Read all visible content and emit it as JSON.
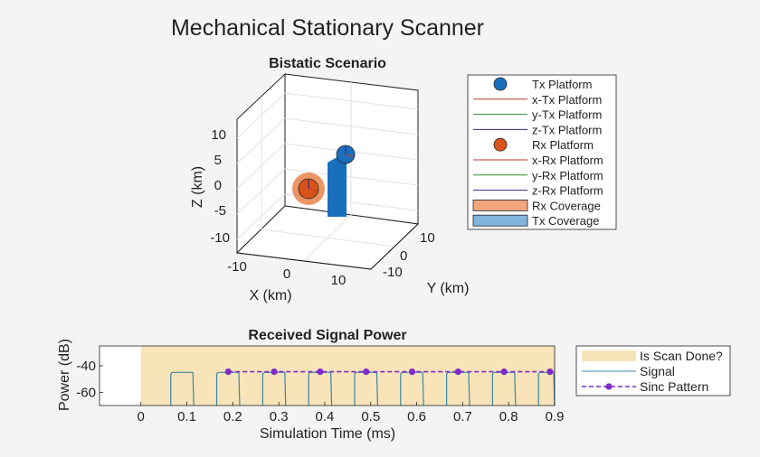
{
  "figure": {
    "title": "Mechanical Stationary Scanner"
  },
  "scenario": {
    "title": "Bistatic Scenario",
    "xlabel": "X (km)",
    "ylabel": "Y (km)",
    "zlabel": "Z (km)",
    "x_ticks": [
      "-10",
      "0",
      "10"
    ],
    "y_ticks": [
      "10",
      "0",
      "-10"
    ],
    "z_ticks": [
      "10",
      "5",
      "0",
      "-5",
      "-10"
    ],
    "legend": [
      {
        "label": "Tx Platform",
        "kind": "marker",
        "color": "#1a6fbd"
      },
      {
        "label": "x-Tx Platform",
        "kind": "line",
        "color": "#c0392b"
      },
      {
        "label": "y-Tx Platform",
        "kind": "line",
        "color": "#2e8b2e"
      },
      {
        "label": "z-Tx Platform",
        "kind": "line",
        "color": "#2a2a8c"
      },
      {
        "label": "Rx Platform",
        "kind": "marker",
        "color": "#d95319"
      },
      {
        "label": "x-Rx Platform",
        "kind": "line",
        "color": "#c0392b"
      },
      {
        "label": "y-Rx Platform",
        "kind": "line",
        "color": "#2e8b2e"
      },
      {
        "label": "z-Rx Platform",
        "kind": "line",
        "color": "#2a2a8c"
      },
      {
        "label": "Rx Coverage",
        "kind": "patch",
        "color": "#f0a67c"
      },
      {
        "label": "Tx Coverage",
        "kind": "patch",
        "color": "#82b4de"
      }
    ]
  },
  "chart_data": {
    "type": "line",
    "title": "Received Signal Power",
    "xlabel": "Simulation Time (ms)",
    "ylabel": "Power (dB)",
    "xlim": [
      -0.09,
      0.9
    ],
    "ylim": [
      -70,
      -25
    ],
    "x_ticks": [
      "0",
      "0.1",
      "0.2",
      "0.3",
      "0.4",
      "0.5",
      "0.6",
      "0.7",
      "0.8",
      "0.9"
    ],
    "y_ticks": [
      "-40",
      "-60"
    ],
    "scan_done_region": [
      0,
      0.9
    ],
    "signal_pulses": [
      [
        0.065,
        0.115
      ],
      [
        0.165,
        0.215
      ],
      [
        0.265,
        0.315
      ],
      [
        0.365,
        0.415
      ],
      [
        0.465,
        0.515
      ],
      [
        0.565,
        0.615
      ],
      [
        0.665,
        0.715
      ],
      [
        0.765,
        0.815
      ],
      [
        0.865,
        0.9
      ]
    ],
    "signal_level": -45,
    "signal_floor": -70,
    "sinc_x": [
      0.19,
      0.29,
      0.39,
      0.49,
      0.59,
      0.69,
      0.79,
      0.89
    ],
    "sinc_y": [
      -44.5,
      -44.5,
      -44.5,
      -44.5,
      -44.5,
      -44.5,
      -44.5,
      -44.5
    ],
    "legend": [
      {
        "label": "Is Scan Done?",
        "kind": "patch",
        "color": "#f8e4b8"
      },
      {
        "label": "Signal",
        "kind": "line",
        "color": "#3a87a8"
      },
      {
        "label": "Sinc Pattern",
        "kind": "dashmarker",
        "color": "#7f2bc8"
      }
    ]
  }
}
